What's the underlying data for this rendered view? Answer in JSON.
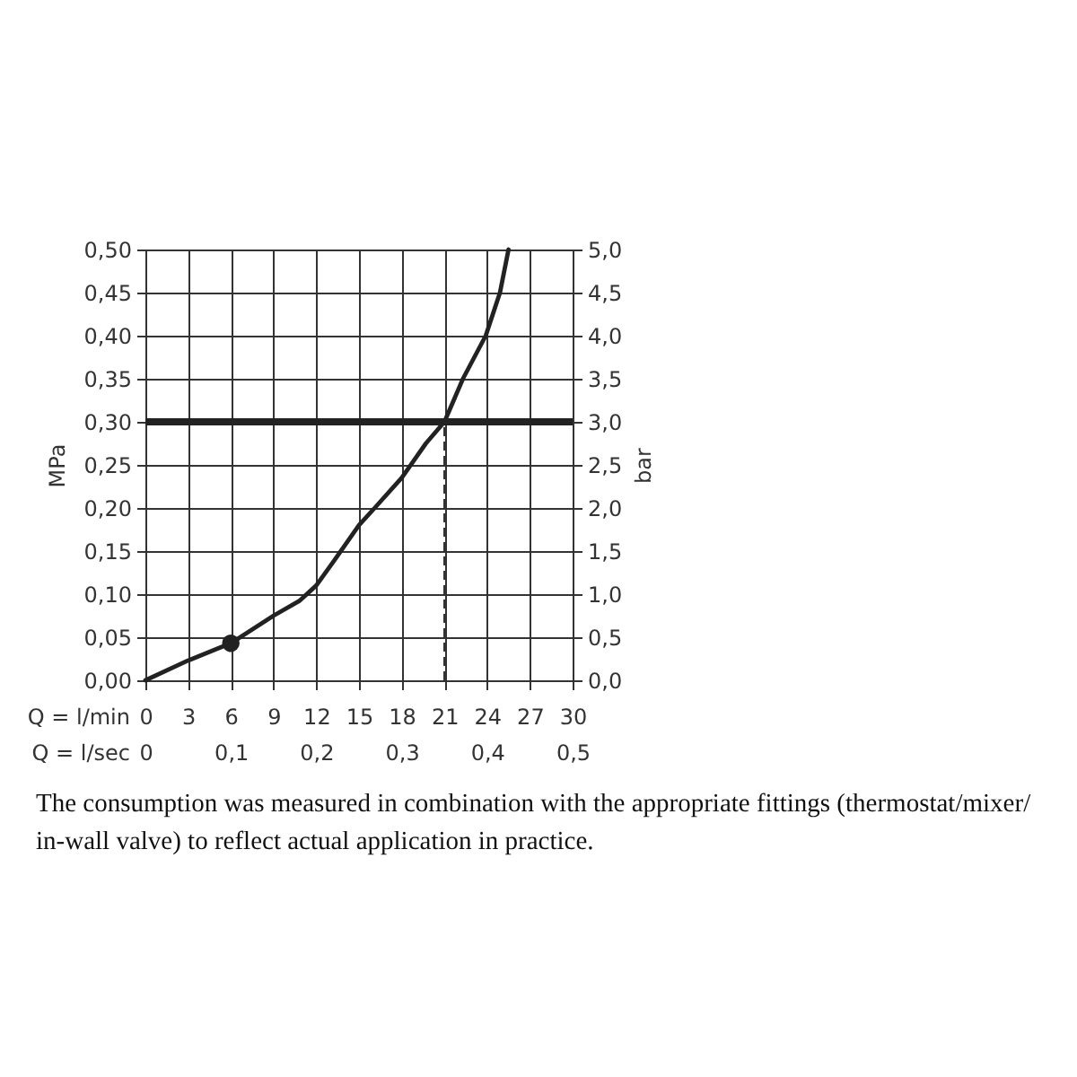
{
  "chart_data": {
    "type": "line",
    "xlabel": "Q = l/min",
    "ylabel": "MPa",
    "y2label": "bar",
    "x2label": "Q = l/sec",
    "annotations": [
      "The consumption was measured in combination with the appropriate fittings (thermostat/mixer/ in-wall valve) to reflect actual application in practice."
    ],
    "series": [
      {
        "color": "#222222",
        "x": [
          0,
          3,
          6,
          9,
          10.8,
          12,
          13.3,
          15,
          16.1,
          18,
          19.7,
          21,
          22.3,
          23.9,
          24.9,
          25.5
        ],
        "values": [
          0,
          0.023,
          0.043,
          0.075,
          0.092,
          0.11,
          0.14,
          0.18,
          0.2,
          0.235,
          0.275,
          0.3,
          0.35,
          0.4,
          0.45,
          0.5
        ]
      },
      {
        "type": "scatter",
        "color": "#222222",
        "marker": "circle",
        "x": [
          6
        ],
        "values": [
          0.043
        ]
      },
      {
        "color": "#333333",
        "line_style": "dashed",
        "x": [
          21,
          21
        ],
        "values": [
          0,
          0.3
        ]
      }
    ],
    "xlim": [
      0,
      30
    ],
    "xticks": [
      0,
      3,
      6,
      9,
      12,
      15,
      18,
      21,
      24,
      27,
      30
    ],
    "ylim": [
      0,
      0.5
    ],
    "yticks": [
      {
        "value": 0,
        "label": "0,00"
      },
      {
        "value": 0.05,
        "label": "0,05"
      },
      {
        "value": 0.1,
        "label": "0,10"
      },
      {
        "value": 0.15,
        "label": "0,15"
      },
      {
        "value": 0.2,
        "label": "0,20"
      },
      {
        "value": 0.25,
        "label": "0,25"
      },
      {
        "value": 0.3,
        "label": "0,30"
      },
      {
        "value": 0.35,
        "label": "0,35"
      },
      {
        "value": 0.4,
        "label": "0,40"
      },
      {
        "value": 0.45,
        "label": "0,45"
      },
      {
        "value": 0.5,
        "label": "0,50"
      }
    ],
    "y2lim": [
      0,
      5
    ],
    "y2ticks": [
      {
        "value": 0,
        "label": "0,0"
      },
      {
        "value": 0.5,
        "label": "0,5"
      },
      {
        "value": 1,
        "label": "1,0"
      },
      {
        "value": 1.5,
        "label": "1,5"
      },
      {
        "value": 2,
        "label": "2,0"
      },
      {
        "value": 2.5,
        "label": "2,5"
      },
      {
        "value": 3,
        "label": "3,0"
      },
      {
        "value": 3.5,
        "label": "3,5"
      },
      {
        "value": 4,
        "label": "4,0"
      },
      {
        "value": 4.5,
        "label": "4,5"
      },
      {
        "value": 5,
        "label": "5,0"
      }
    ],
    "x2lim": [
      0,
      0.5
    ],
    "x2ticks": [
      0,
      {
        "value": 0.1,
        "label": "0,1"
      },
      {
        "value": 0.2,
        "label": "0,2"
      },
      {
        "value": 0.3,
        "label": "0,3"
      },
      {
        "value": 0.4,
        "label": "0,4"
      },
      {
        "value": 0.5,
        "label": "0,5"
      }
    ],
    "ref_lines": [
      {
        "axis": "y",
        "value": 0.3,
        "color": "#222222"
      }
    ],
    "grid": true
  }
}
